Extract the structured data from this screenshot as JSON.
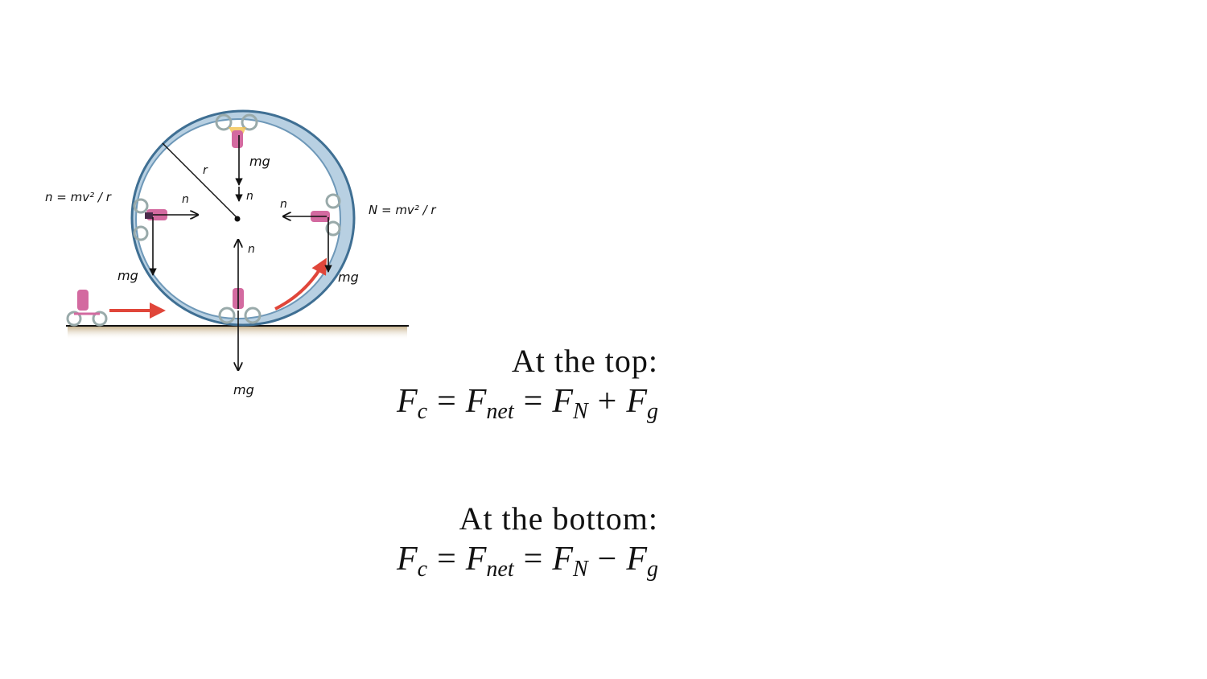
{
  "diagram": {
    "labels": {
      "radius": "r",
      "weight": "mg",
      "normal": "n",
      "left_formula": "n = mv² / r",
      "right_formula": "N = mv² / r"
    },
    "colors": {
      "loop": "#8fb4cf",
      "loop_dark": "#3f6f93",
      "ground": "#c9b48f",
      "motion_arrow": "#e0463a",
      "ink": "#111111",
      "rider": "#d36aa0"
    }
  },
  "top_case": {
    "heading": "At the top:",
    "equation": {
      "lhs": "F",
      "lhs_sub": "c",
      "op1": "=",
      "mid": "F",
      "mid_sub": "net",
      "op2": "=",
      "term1": "F",
      "term1_sub": "N",
      "op3": "+",
      "term2": "F",
      "term2_sub": "g"
    }
  },
  "bottom_case": {
    "heading": "At the bottom:",
    "equation": {
      "lhs": "F",
      "lhs_sub": "c",
      "op1": "=",
      "mid": "F",
      "mid_sub": "net",
      "op2": "=",
      "term1": "F",
      "term1_sub": "N",
      "op3": "−",
      "term2": "F",
      "term2_sub": "g"
    }
  }
}
